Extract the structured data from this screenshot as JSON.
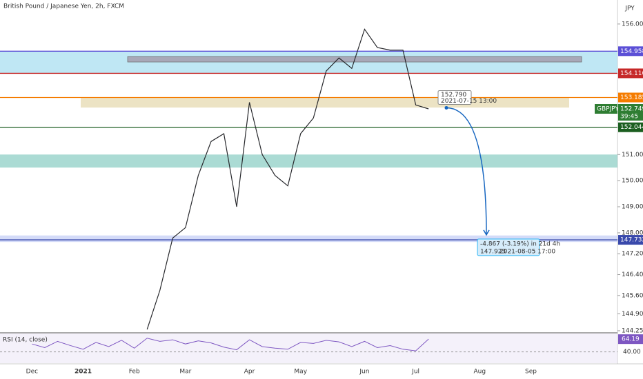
{
  "chart_data": {
    "type": "line",
    "title": "British Pound / Japanese Yen, 2h, FXCM",
    "currency": "JPY",
    "categories": [
      null,
      null,
      "Dec",
      null,
      null,
      null,
      "2021",
      null,
      null,
      null,
      "Feb",
      null,
      null,
      null,
      "Mar",
      null,
      null,
      null,
      null,
      "Apr",
      null,
      null,
      null,
      "May",
      null,
      null,
      null,
      null,
      "Jun",
      null,
      null,
      null,
      "Jul",
      null,
      null,
      null,
      null,
      "Aug",
      null,
      null,
      null,
      "Sep",
      null,
      null,
      null,
      null,
      null,
      null
    ],
    "series": [
      {
        "name": "GBPJPY",
        "color": "#26272b",
        "values": [
          null,
          null,
          null,
          null,
          null,
          null,
          null,
          null,
          null,
          null,
          null,
          144.3,
          145.8,
          147.8,
          148.2,
          150.2,
          151.5,
          151.8,
          149.0,
          153.0,
          151.0,
          150.2,
          149.8,
          151.8,
          152.4,
          154.2,
          154.7,
          154.3,
          155.8,
          155.1,
          155.0,
          155.0,
          152.9,
          152.749,
          null,
          null,
          null,
          null,
          null,
          null,
          null,
          null,
          null,
          null,
          null,
          null,
          null,
          null
        ]
      }
    ],
    "ylim": [
      144.17,
      156.92
    ],
    "yticks": [
      {
        "value": 156,
        "label": "156.000"
      },
      {
        "value": 151,
        "label": "151.000"
      },
      {
        "value": 150,
        "label": "150.000"
      },
      {
        "value": 149,
        "label": "149.000"
      },
      {
        "value": 148,
        "label": "148.000"
      },
      {
        "value": 147.2,
        "label": "147.200"
      },
      {
        "value": 146.4,
        "label": "146.400"
      },
      {
        "value": 145.6,
        "label": "145.600"
      },
      {
        "value": 144.9,
        "label": "144.900"
      },
      {
        "value": 144.25,
        "label": "144.250"
      }
    ],
    "levels": [
      {
        "value": 154.958,
        "color": "#5b4fd6"
      },
      {
        "value": 154.11,
        "label": "154.110",
        "color": "#c62828"
      },
      {
        "value": 153.185,
        "color": "#f57c00"
      },
      {
        "value": 152.044,
        "color": "#1b5e20"
      },
      {
        "value": 147.732,
        "color": "#3949ab"
      }
    ],
    "zones": [
      {
        "from": 154.11,
        "to": 154.958,
        "color": "#a9dff0"
      },
      {
        "from": 152.8,
        "to": 153.185,
        "color": "#e6d9b0"
      },
      {
        "from": 150.5,
        "to": 151.0,
        "color": "#8fcfc6"
      },
      {
        "from": 147.65,
        "to": 147.9,
        "color": "#c5cff5"
      }
    ],
    "last_price": {
      "symbol": "GBPJPY",
      "value": 152.749,
      "countdown": "39:45",
      "color": "#2e7d32"
    },
    "projection": {
      "start": {
        "value": 152.79,
        "label": "152.790"
      },
      "start_time": "2021-07-15 13:00",
      "end": 147.923,
      "end_time": "2021-08-05 17:00",
      "change": "-4.867 (-3.19%) in 21d 4h"
    },
    "rsi": {
      "name": "RSI (14, close)",
      "color": "#7e57c2",
      "ylim": [
        18.5,
        74.9
      ],
      "yticks": [
        {
          "value": 40,
          "label": "40.00"
        }
      ],
      "last": 64.19,
      "values": [
        null,
        null,
        55,
        48,
        60,
        52,
        45,
        58,
        50,
        62,
        47,
        66,
        60,
        63,
        55,
        61,
        57,
        49,
        44,
        63,
        50,
        47,
        45,
        58,
        56,
        62,
        59,
        50,
        60,
        48,
        52,
        45,
        42,
        64.19,
        null,
        null,
        null,
        null,
        null,
        null,
        null,
        null,
        null,
        null,
        null,
        null,
        null,
        null
      ]
    }
  }
}
